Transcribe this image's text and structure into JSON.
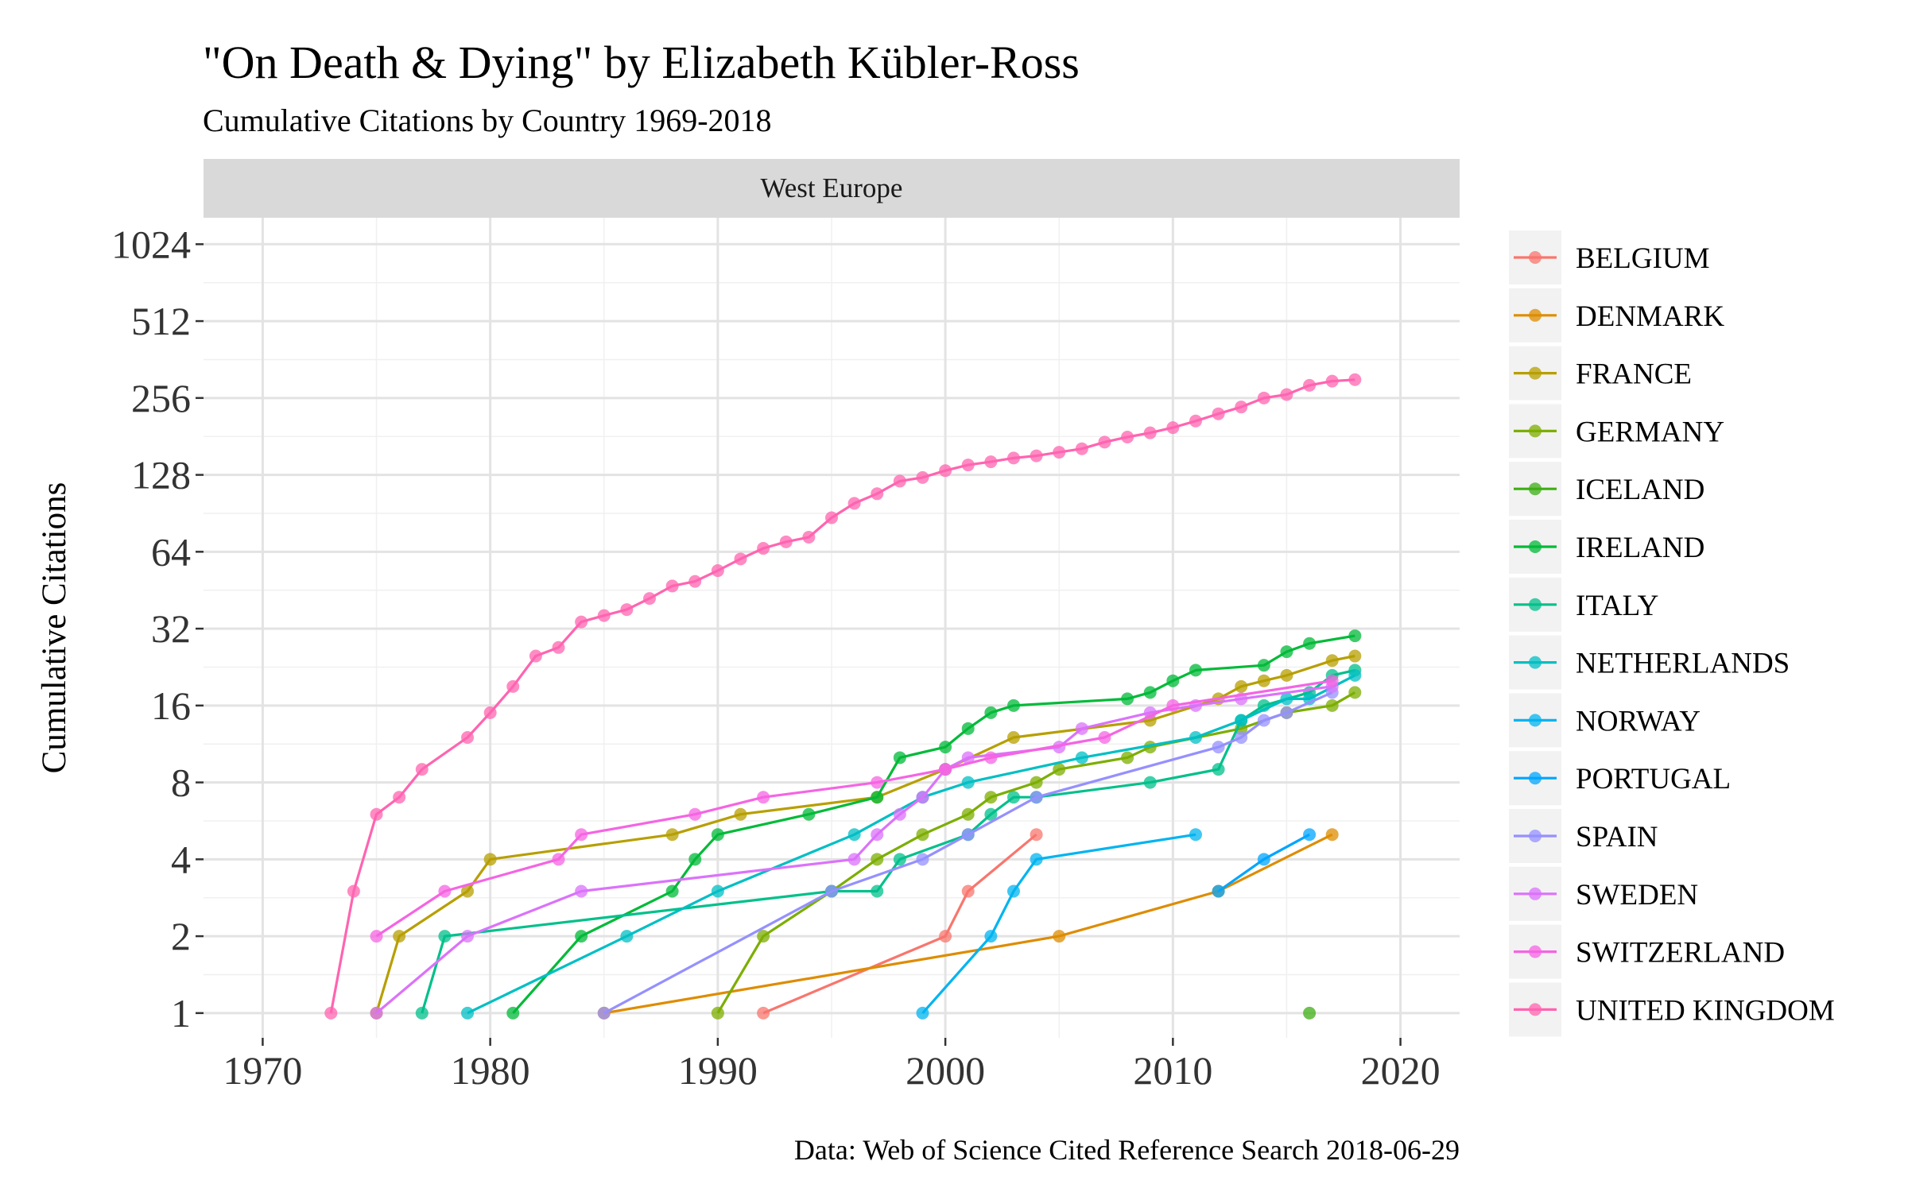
{
  "chart_data": {
    "type": "line",
    "title": "\"On Death & Dying\" by Elizabeth Kübler-Ross",
    "subtitle": "Cumulative Citations by Country 1969-2018",
    "facet_label": "West Europe",
    "xlabel": "",
    "ylabel": "Cumulative Citations",
    "caption": "Data: Web of Science Cited Reference Search 2018-06-29",
    "xlim": [
      1967.4,
      2022.6
    ],
    "x_ticks": [
      1970,
      1980,
      1990,
      2000,
      2010,
      2020
    ],
    "y_scale": "log2",
    "ylim": [
      0.8,
      1300
    ],
    "y_ticks": [
      1,
      2,
      4,
      8,
      16,
      32,
      64,
      128,
      256,
      512,
      1024
    ],
    "grid": true,
    "legend_position": "right",
    "series": [
      {
        "name": "BELGIUM",
        "color": "#F8766D",
        "x": [
          1992,
          2000,
          2001,
          2004
        ],
        "y": [
          1,
          2,
          3,
          5
        ]
      },
      {
        "name": "DENMARK",
        "color": "#DE8C00",
        "x": [
          1985,
          2005,
          2012,
          2017
        ],
        "y": [
          1,
          2,
          3,
          5
        ]
      },
      {
        "name": "FRANCE",
        "color": "#B79F00",
        "x": [
          1975,
          1976,
          1979,
          1980,
          1988,
          1991,
          1997,
          2000,
          2003,
          2009,
          2012,
          2013,
          2014,
          2015,
          2017,
          2018
        ],
        "y": [
          1,
          2,
          3,
          4,
          5,
          6,
          7,
          9,
          12,
          14,
          17,
          19,
          20,
          21,
          24,
          25
        ]
      },
      {
        "name": "GERMANY",
        "color": "#7CAE00",
        "x": [
          1990,
          1992,
          1995,
          1997,
          1999,
          2001,
          2002,
          2004,
          2005,
          2008,
          2009,
          2013,
          2015,
          2017,
          2018
        ],
        "y": [
          1,
          2,
          3,
          4,
          5,
          6,
          7,
          8,
          9,
          10,
          11,
          13,
          15,
          16,
          18
        ]
      },
      {
        "name": "ICELAND",
        "color": "#3DAE14",
        "x": [
          2016
        ],
        "y": [
          1
        ]
      },
      {
        "name": "IRELAND",
        "color": "#00BA38",
        "x": [
          1981,
          1984,
          1988,
          1989,
          1990,
          1994,
          1997,
          1998,
          2000,
          2001,
          2002,
          2003,
          2008,
          2009,
          2010,
          2011,
          2014,
          2015,
          2016,
          2018
        ],
        "y": [
          1,
          2,
          3,
          4,
          5,
          6,
          7,
          10,
          11,
          13,
          15,
          16,
          17,
          18,
          20,
          22,
          23,
          26,
          28,
          30
        ]
      },
      {
        "name": "ITALY",
        "color": "#00C08B",
        "x": [
          1977,
          1978,
          1995,
          1997,
          1998,
          2001,
          2002,
          2003,
          2004,
          2009,
          2012,
          2013,
          2014,
          2016,
          2017,
          2018
        ],
        "y": [
          1,
          2,
          3,
          3,
          4,
          5,
          6,
          7,
          7,
          8,
          9,
          14,
          16,
          18,
          21,
          22
        ]
      },
      {
        "name": "NETHERLANDS",
        "color": "#00BFC4",
        "x": [
          1979,
          1986,
          1990,
          1996,
          1999,
          2001,
          2006,
          2011,
          2013,
          2015,
          2016,
          2018
        ],
        "y": [
          1,
          2,
          3,
          5,
          7,
          8,
          10,
          12,
          14,
          17,
          17,
          21
        ]
      },
      {
        "name": "NORWAY",
        "color": "#00B4F0",
        "x": [
          1999,
          2002,
          2003,
          2004,
          2011
        ],
        "y": [
          1,
          2,
          3,
          4,
          5
        ]
      },
      {
        "name": "PORTUGAL",
        "color": "#00A5FF",
        "x": [
          2012,
          2014,
          2016
        ],
        "y": [
          3,
          4,
          5
        ]
      },
      {
        "name": "SPAIN",
        "color": "#9590FF",
        "x": [
          1985,
          1995,
          1999,
          2001,
          2004,
          2012,
          2013,
          2014,
          2015,
          2017
        ],
        "y": [
          1,
          3,
          4,
          5,
          7,
          11,
          12,
          14,
          15,
          18
        ]
      },
      {
        "name": "SWEDEN",
        "color": "#DB72FB",
        "x": [
          1975,
          1979,
          1984,
          1996,
          1997,
          1998,
          1999,
          2000,
          2001,
          2005,
          2006,
          2009,
          2011,
          2013,
          2017
        ],
        "y": [
          1,
          2,
          3,
          4,
          5,
          6,
          7,
          9,
          10,
          11,
          13,
          15,
          16,
          17,
          19
        ]
      },
      {
        "name": "SWITZERLAND",
        "color": "#F564E3",
        "x": [
          1975,
          1978,
          1983,
          1984,
          1989,
          1992,
          1997,
          2000,
          2002,
          2007,
          2010,
          2017
        ],
        "y": [
          2,
          3,
          4,
          5,
          6,
          7,
          8,
          9,
          10,
          12,
          16,
          20
        ]
      },
      {
        "name": "UNITED KINGDOM",
        "color": "#FF64B0",
        "x": [
          1973,
          1974,
          1975,
          1976,
          1977,
          1979,
          1980,
          1981,
          1982,
          1983,
          1984,
          1985,
          1986,
          1987,
          1988,
          1989,
          1990,
          1991,
          1992,
          1993,
          1994,
          1995,
          1996,
          1997,
          1998,
          1999,
          2000,
          2001,
          2002,
          2003,
          2004,
          2005,
          2006,
          2007,
          2008,
          2009,
          2010,
          2011,
          2012,
          2013,
          2014,
          2015,
          2016,
          2017,
          2018
        ],
        "y": [
          1,
          3,
          6,
          7,
          9,
          12,
          15,
          19,
          25,
          27,
          34,
          36,
          38,
          42,
          47,
          49,
          54,
          60,
          66,
          70,
          73,
          87,
          99,
          108,
          121,
          125,
          133,
          140,
          144,
          149,
          152,
          157,
          162,
          172,
          180,
          187,
          196,
          208,
          222,
          236,
          256,
          264,
          287,
          298,
          302
        ]
      }
    ]
  }
}
